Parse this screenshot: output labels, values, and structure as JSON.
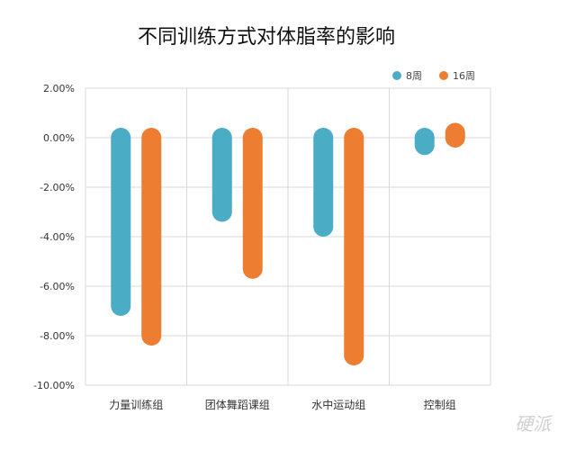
{
  "chart_data": {
    "type": "bar",
    "title": "不同训练方式对体脂率的影响",
    "categories": [
      "力量训练组",
      "团体舞蹈课组",
      "水中运动组",
      "控制组"
    ],
    "series": [
      {
        "name": "8周",
        "color": "#4bacc6",
        "values": [
          -6.8,
          -3.0,
          -3.6,
          -0.3
        ]
      },
      {
        "name": "16周",
        "color": "#ed7d31",
        "values": [
          -8.0,
          -5.3,
          -8.8,
          0.2
        ]
      }
    ],
    "ylim": [
      -10,
      2
    ],
    "yticks": [
      2,
      0,
      -2,
      -4,
      -6,
      -8,
      -10
    ],
    "ytick_labels": [
      "2.00%",
      "0.00%",
      "-2.00%",
      "-4.00%",
      "-6.00%",
      "-8.00%",
      "-10.00%"
    ],
    "xlabel": "",
    "ylabel": "",
    "grid": true,
    "legend_position": "top-right"
  },
  "watermark": "硬派"
}
